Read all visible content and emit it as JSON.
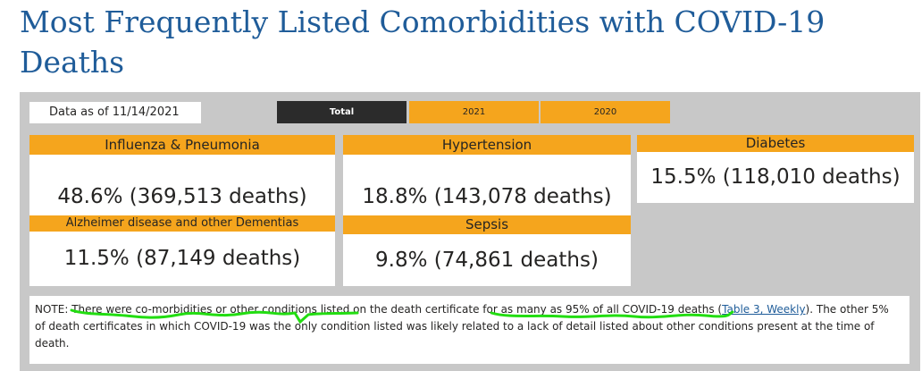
{
  "title": "Most Frequently Listed Comorbidities with COVID-19 Deaths",
  "as_of": "Data as of 11/14/2021",
  "tabs": [
    {
      "label": "Total",
      "active": true
    },
    {
      "label": "2021",
      "active": false
    },
    {
      "label": "2020",
      "active": false
    }
  ],
  "cards": [
    {
      "label": "Influenza & Pneumonia",
      "value": "48.6% (369,513 deaths)"
    },
    {
      "label": "Hypertension",
      "value": "18.8% (143,078 deaths)"
    },
    {
      "label": "Diabetes",
      "value": "15.5% (118,010 deaths)"
    },
    {
      "label": "Alzheimer disease and other Dementias",
      "value": "11.5% (87,149 deaths)"
    },
    {
      "label": "Sepsis",
      "value": "9.8% (74,861 deaths)"
    }
  ],
  "note": {
    "prefix": "NOTE: There were co-morbidities or other conditions listed on the death certificate for as many as 95% of all COVID-19 deaths (",
    "link": "Table 3, Weekly",
    "suffix": "). The other 5% of death certificates in which COVID-19 was the only condition listed was likely related to a lack of detail listed about other conditions present at the time of death."
  },
  "colors": {
    "title": "#1f5c99",
    "accent": "#f5a51d",
    "tab_active": "#2b2b2b",
    "panel": "#c8c8c8",
    "annotation": "#22dd11"
  }
}
